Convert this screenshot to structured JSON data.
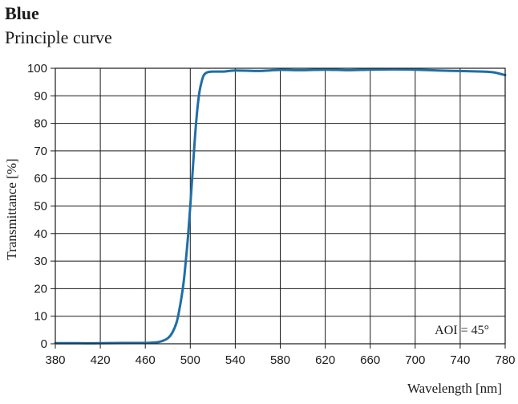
{
  "chart_data": {
    "type": "line",
    "title": "Blue",
    "subtitle": "Principle curve",
    "xlabel": "Wavelength [nm]",
    "ylabel": "Transmittance [%]",
    "xlim": [
      380,
      780
    ],
    "ylim": [
      0,
      100
    ],
    "xticks": [
      380,
      420,
      460,
      500,
      540,
      580,
      620,
      660,
      700,
      740,
      780
    ],
    "yticks": [
      0,
      10,
      20,
      30,
      40,
      50,
      60,
      70,
      80,
      90,
      100
    ],
    "grid": true,
    "annotation": "AOI = 45°",
    "line_color": "#1f6ea8",
    "series": [
      {
        "x": [
          380,
          400,
          420,
          440,
          460,
          470,
          475,
          480,
          484,
          488,
          491,
          494,
          496,
          498,
          500,
          502,
          504,
          506,
          508,
          510,
          512,
          515,
          520,
          530,
          540,
          560,
          580,
          600,
          620,
          640,
          660,
          680,
          700,
          720,
          740,
          760,
          770,
          780
        ],
        "y": [
          0.2,
          0.2,
          0.2,
          0.3,
          0.3,
          0.5,
          1,
          2,
          4,
          8,
          14,
          22,
          30,
          39,
          50,
          62,
          74,
          84,
          91,
          95,
          97.5,
          98.5,
          98.8,
          98.8,
          99.2,
          99.0,
          99.4,
          99.3,
          99.5,
          99.3,
          99.5,
          99.6,
          99.5,
          99.2,
          99.0,
          98.8,
          98.5,
          97.5
        ]
      }
    ]
  }
}
